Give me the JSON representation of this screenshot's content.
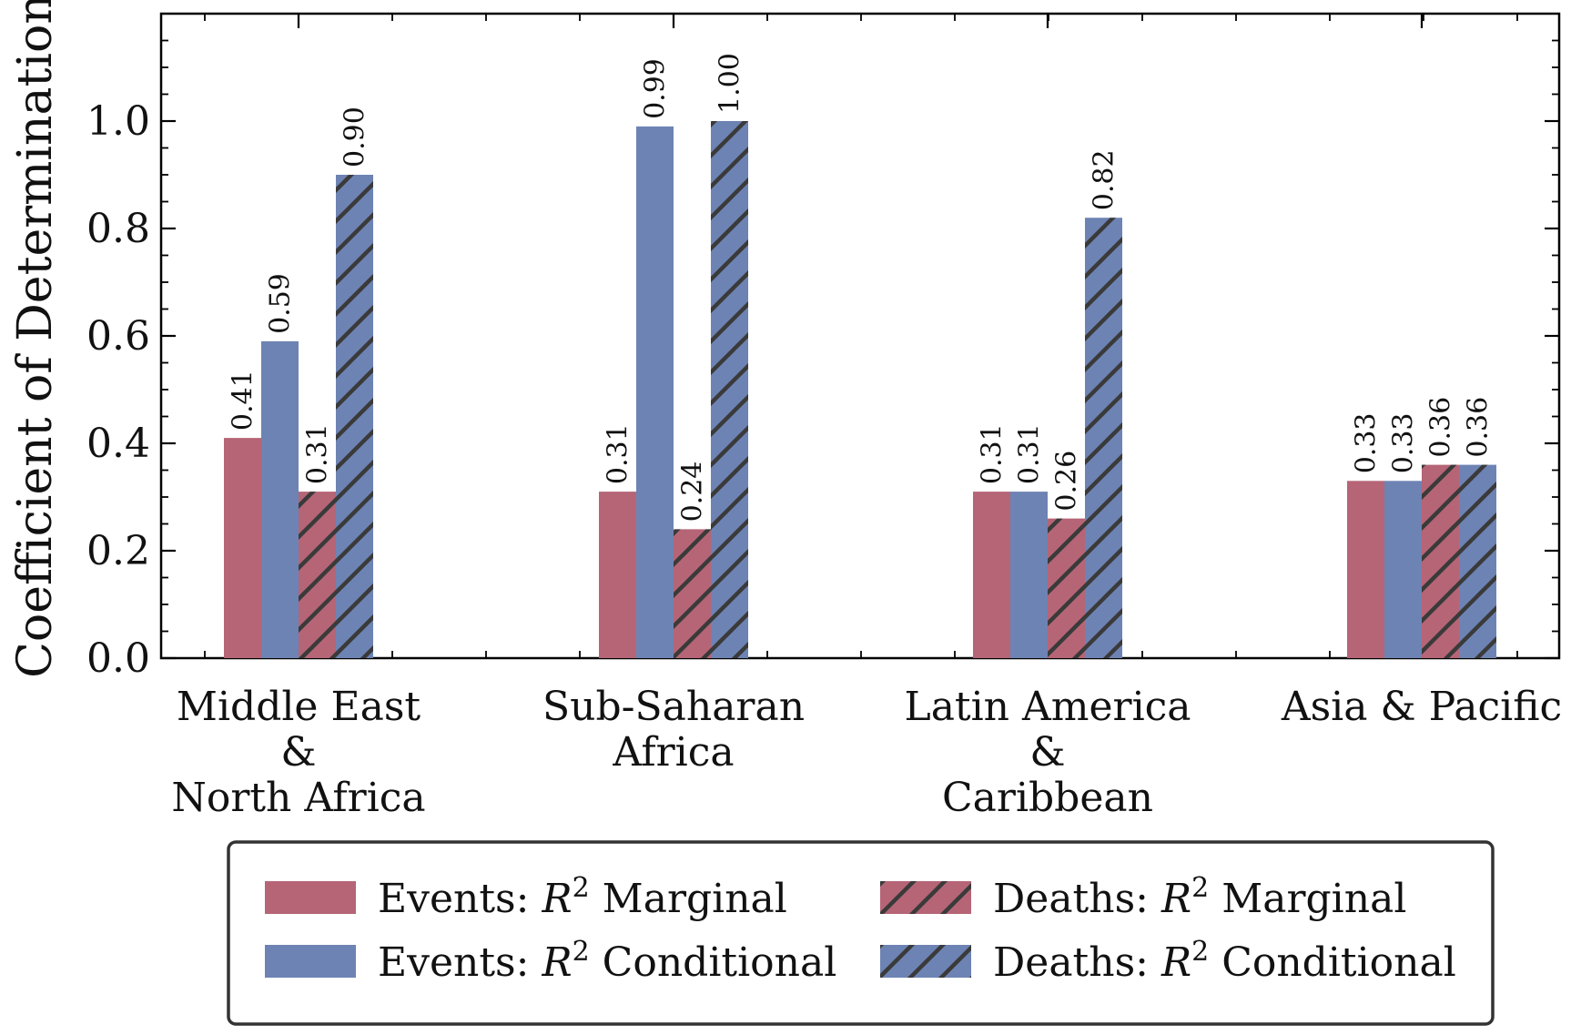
{
  "colors": {
    "marginal": "#b56576",
    "conditional": "#6d83b3",
    "hatch": "#3a3a3a",
    "axis": "#000000"
  },
  "chart_data": {
    "type": "bar",
    "ylabel": "Coefficient of Determination",
    "ylim": [
      0,
      1.2
    ],
    "yticks": [
      "0.0",
      "0.2",
      "0.4",
      "0.6",
      "0.8",
      "1.0"
    ],
    "categories": [
      [
        "Middle East",
        "&",
        "North Africa"
      ],
      [
        "Sub-Saharan",
        "Africa"
      ],
      [
        "Latin America",
        "&",
        "Caribbean"
      ],
      [
        "Asia & Pacific"
      ]
    ],
    "series": [
      {
        "name": "Events: R² Marginal",
        "legend_prefix": "Events: ",
        "legend_suffix": " Marginal",
        "color": "marginal",
        "hatch": false,
        "values": [
          0.41,
          0.31,
          0.31,
          0.33
        ]
      },
      {
        "name": "Events: R² Conditional",
        "legend_prefix": "Events: ",
        "legend_suffix": " Conditional",
        "color": "conditional",
        "hatch": false,
        "values": [
          0.59,
          0.99,
          0.31,
          0.33
        ]
      },
      {
        "name": "Deaths: R² Marginal",
        "legend_prefix": "Deaths: ",
        "legend_suffix": " Marginal",
        "color": "marginal",
        "hatch": true,
        "values": [
          0.31,
          0.24,
          0.26,
          0.36
        ]
      },
      {
        "name": "Deaths: R² Conditional",
        "legend_prefix": "Deaths: ",
        "legend_suffix": " Conditional",
        "color": "conditional",
        "hatch": true,
        "values": [
          0.9,
          1.0,
          0.82,
          0.36
        ]
      }
    ],
    "value_labels": [
      [
        "0.41",
        "0.31",
        "0.31",
        "0.33"
      ],
      [
        "0.59",
        "0.99",
        "0.31",
        "0.33"
      ],
      [
        "0.31",
        "0.24",
        "0.26",
        "0.36"
      ],
      [
        "0.90",
        "1.00",
        "0.82",
        "0.36"
      ]
    ],
    "legend": {
      "placement": "bottom-center",
      "columns": 2
    },
    "grid": false
  }
}
